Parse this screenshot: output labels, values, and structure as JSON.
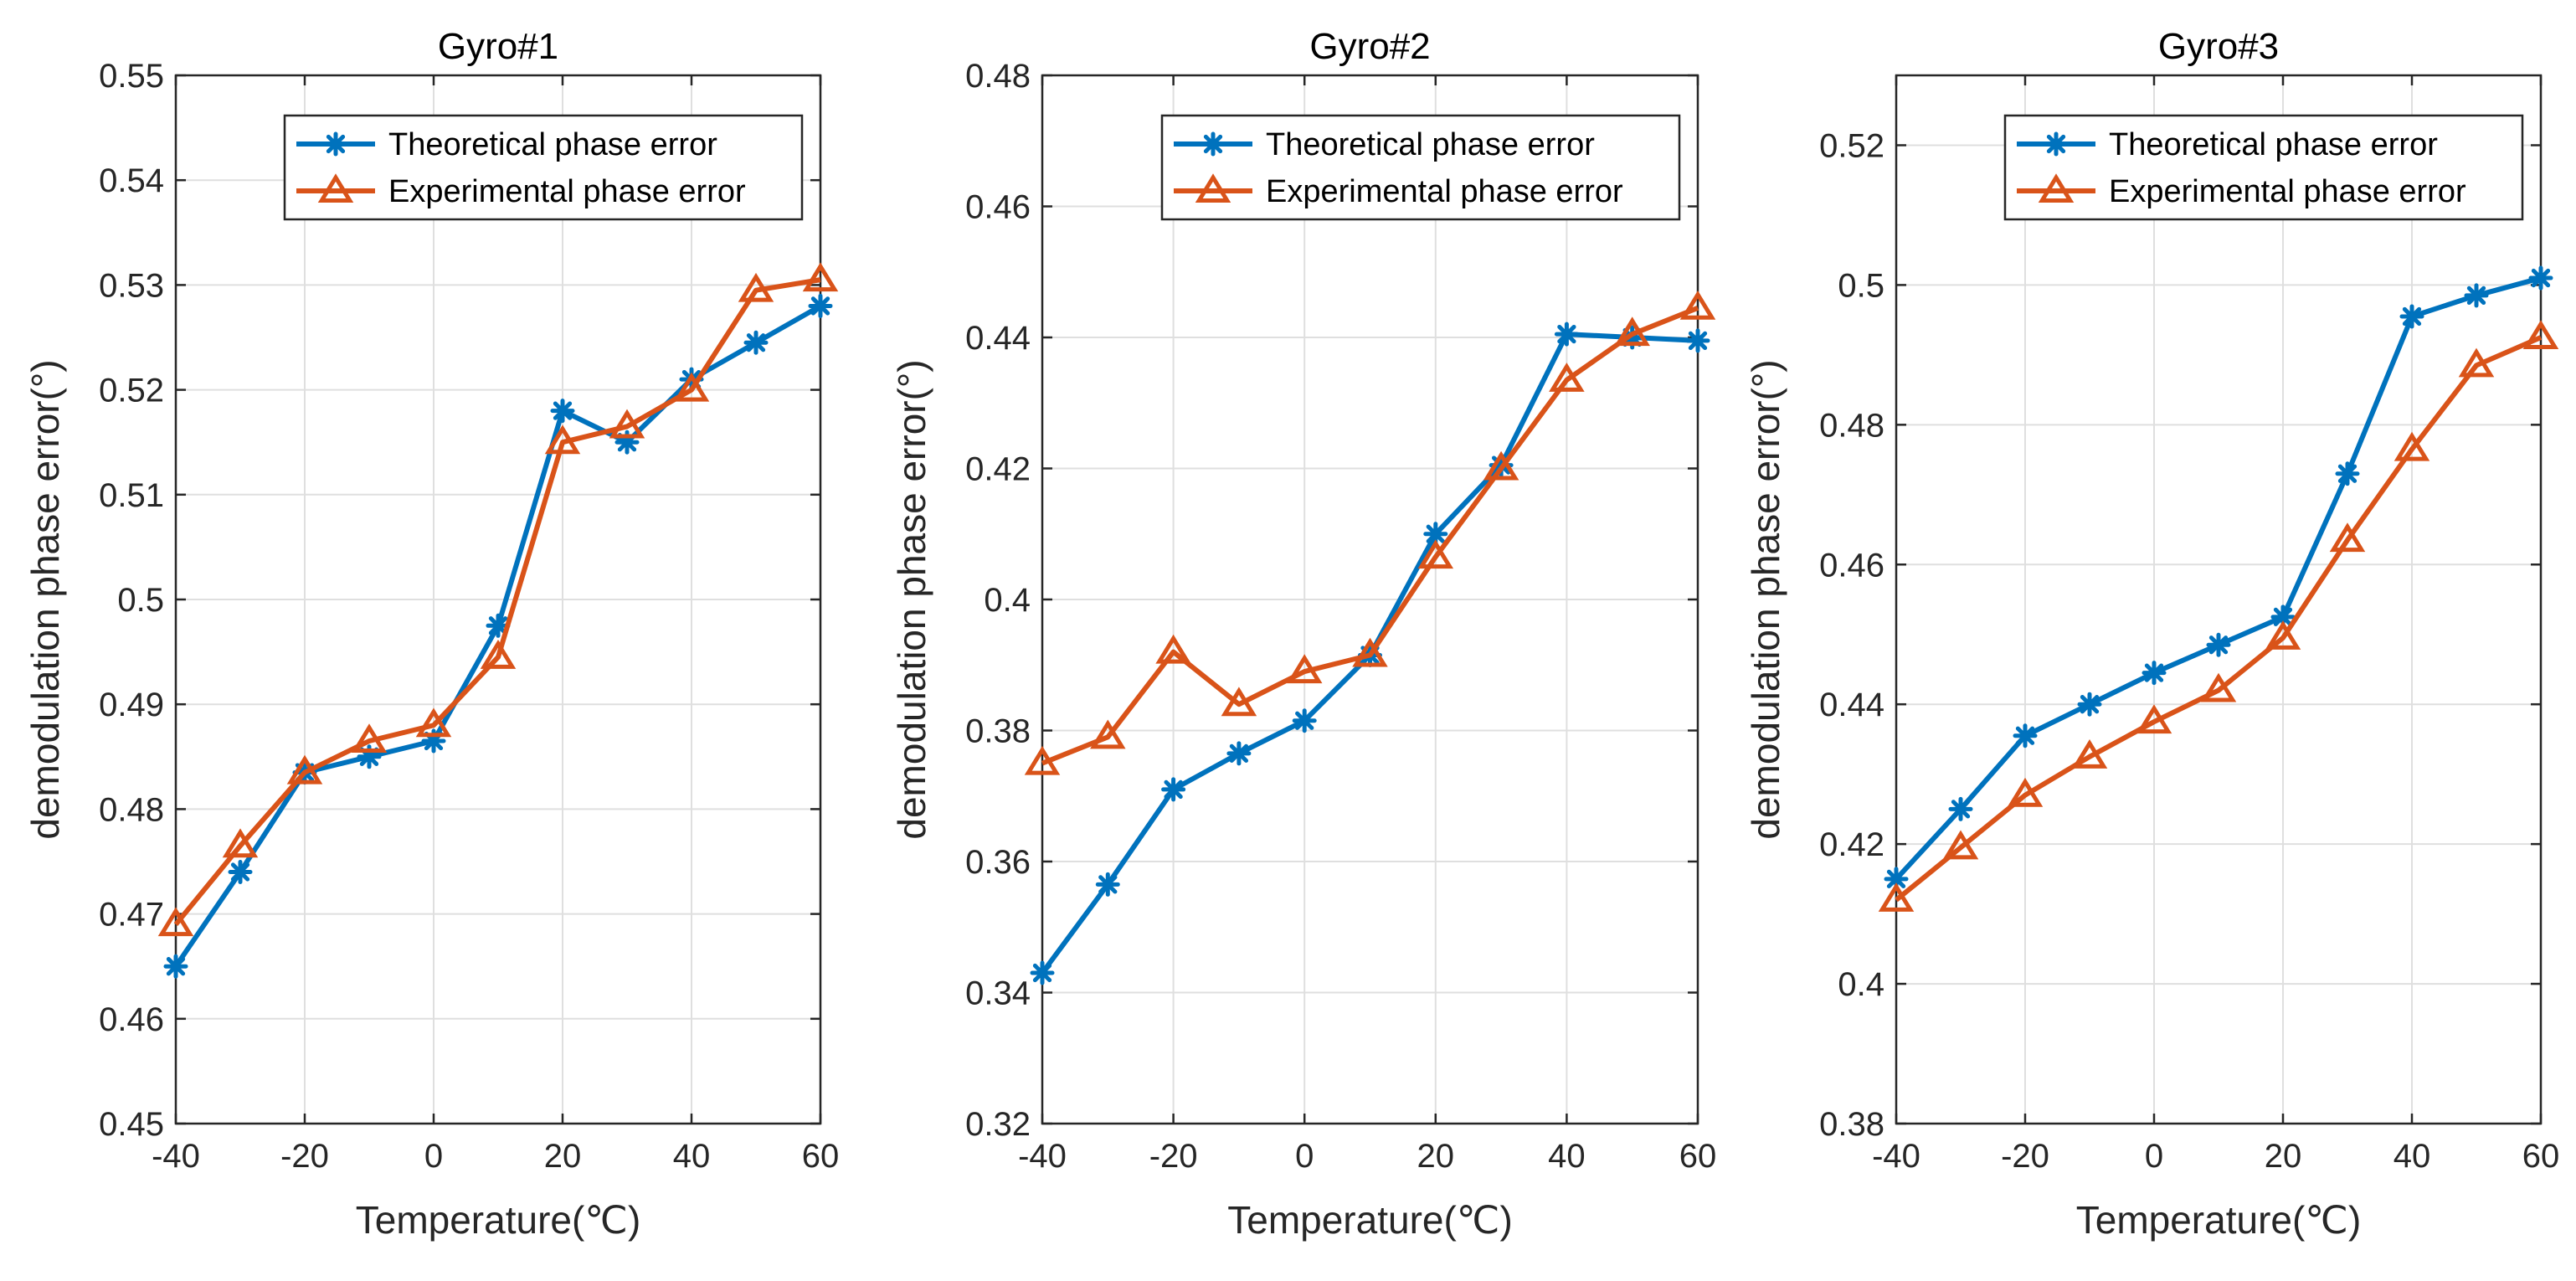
{
  "colors": {
    "theoretical": "#0072BD",
    "experimental": "#D95319",
    "grid": "#DFDFDF",
    "axis": "#262626"
  },
  "chart_data": [
    {
      "type": "line",
      "title": "Gyro#1",
      "xlabel": "Temperature(℃)",
      "ylabel": "demodulation phase error(°)",
      "x": [
        -40,
        -30,
        -20,
        -10,
        0,
        10,
        20,
        30,
        40,
        50,
        60
      ],
      "xlim": [
        -40,
        60
      ],
      "ylim": [
        0.45,
        0.55
      ],
      "xticks": [
        -40,
        -20,
        0,
        20,
        40,
        60
      ],
      "xtick_labels": [
        "-40",
        "-20",
        "0",
        "20",
        "40",
        "60"
      ],
      "yticks": [
        0.45,
        0.46,
        0.47,
        0.48,
        0.49,
        0.5,
        0.51,
        0.52,
        0.53,
        0.54,
        0.55
      ],
      "ytick_labels": [
        "0.45",
        "0.46",
        "0.47",
        "0.48",
        "0.49",
        "0.5",
        "0.51",
        "0.52",
        "0.53",
        "0.54",
        "0.55"
      ],
      "grid": true,
      "legend_position": "top-right",
      "series": [
        {
          "name": "Theoretical phase error",
          "marker": "asterisk",
          "values": [
            0.465,
            0.474,
            0.4835,
            0.485,
            0.4865,
            0.4975,
            0.518,
            0.515,
            0.521,
            0.5245,
            0.528
          ]
        },
        {
          "name": "Experimental phase error",
          "marker": "triangle",
          "values": [
            0.469,
            0.4765,
            0.4835,
            0.4865,
            0.488,
            0.4945,
            0.515,
            0.5165,
            0.52,
            0.5295,
            0.5305
          ]
        }
      ]
    },
    {
      "type": "line",
      "title": "Gyro#2",
      "xlabel": "Temperature(℃)",
      "ylabel": "demodulation phase error(°)",
      "x": [
        -40,
        -30,
        -20,
        -10,
        0,
        10,
        20,
        30,
        40,
        50,
        60
      ],
      "xlim": [
        -40,
        60
      ],
      "ylim": [
        0.32,
        0.48
      ],
      "xticks": [
        -40,
        -20,
        0,
        20,
        40,
        60
      ],
      "xtick_labels": [
        "-40",
        "-20",
        "0",
        "20",
        "40",
        "60"
      ],
      "yticks": [
        0.32,
        0.34,
        0.36,
        0.38,
        0.4,
        0.42,
        0.44,
        0.46,
        0.48
      ],
      "ytick_labels": [
        "0.32",
        "0.34",
        "0.36",
        "0.38",
        "0.4",
        "0.42",
        "0.44",
        "0.46",
        "0.48"
      ],
      "grid": true,
      "legend_position": "top-right",
      "series": [
        {
          "name": "Theoretical phase error",
          "marker": "asterisk",
          "values": [
            0.343,
            0.3565,
            0.371,
            0.3765,
            0.3815,
            0.3915,
            0.41,
            0.4205,
            0.4405,
            0.44,
            0.4395
          ]
        },
        {
          "name": "Experimental phase error",
          "marker": "triangle",
          "values": [
            0.375,
            0.379,
            0.392,
            0.384,
            0.389,
            0.3915,
            0.4065,
            0.42,
            0.4335,
            0.4405,
            0.4445
          ]
        }
      ]
    },
    {
      "type": "line",
      "title": "Gyro#3",
      "xlabel": "Temperature(℃)",
      "ylabel": "demodulation phase error(°)",
      "x": [
        -40,
        -30,
        -20,
        -10,
        0,
        10,
        20,
        30,
        40,
        50,
        60
      ],
      "xlim": [
        -40,
        60
      ],
      "ylim": [
        0.38,
        0.53
      ],
      "xticks": [
        -40,
        -20,
        0,
        20,
        40,
        60
      ],
      "xtick_labels": [
        "-40",
        "-20",
        "0",
        "20",
        "40",
        "60"
      ],
      "yticks": [
        0.38,
        0.4,
        0.42,
        0.44,
        0.46,
        0.48,
        0.5,
        0.52
      ],
      "ytick_labels": [
        "0.38",
        "0.4",
        "0.42",
        "0.44",
        "0.46",
        "0.48",
        "0.5",
        "0.52"
      ],
      "grid": true,
      "legend_position": "top-right",
      "series": [
        {
          "name": "Theoretical phase error",
          "marker": "asterisk",
          "values": [
            0.415,
            0.425,
            0.4355,
            0.44,
            0.4445,
            0.4485,
            0.4525,
            0.473,
            0.4955,
            0.4985,
            0.501
          ]
        },
        {
          "name": "Experimental phase error",
          "marker": "triangle",
          "values": [
            0.412,
            0.4195,
            0.427,
            0.4325,
            0.4375,
            0.442,
            0.4495,
            0.4635,
            0.4765,
            0.4885,
            0.4925
          ]
        }
      ]
    }
  ]
}
